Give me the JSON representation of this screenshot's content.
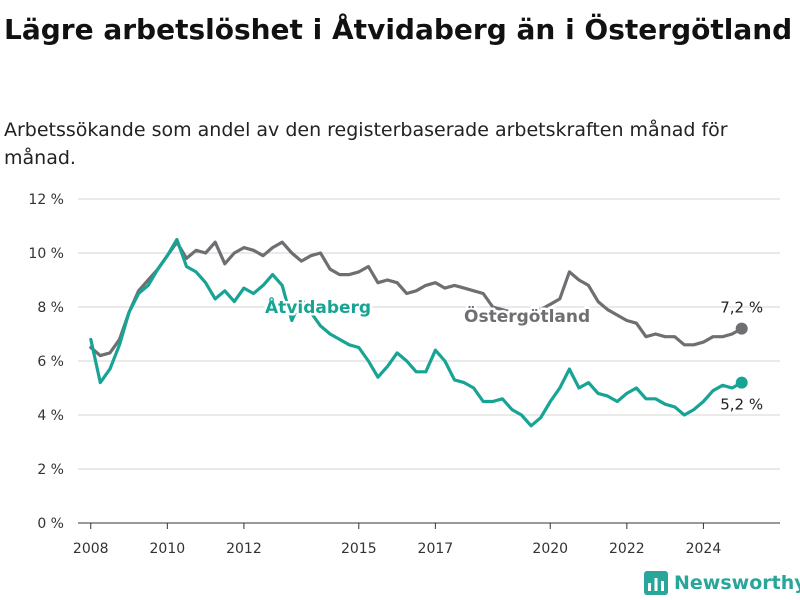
{
  "title": "Lägre arbetslöshet i Åtvidaberg än i Östergötland",
  "subtitle": "Arbetssökande som andel av den registerbaserade arbetskraften månad för månad.",
  "brand": {
    "name": "Newsworthy",
    "icon": "bar-chart-icon"
  },
  "colors": {
    "atvidaberg": "#17a495",
    "ostergotland": "#6f6e72",
    "grid": "#d5d5d5",
    "axis": "#333333"
  },
  "chart_data": {
    "type": "line",
    "title": "Lägre arbetslöshet i Åtvidaberg än i Östergötland",
    "subtitle": "Arbetssökande som andel av den registerbaserade arbetskraften månad för månad.",
    "xlabel": "",
    "ylabel": "",
    "ylim": [
      0,
      12
    ],
    "y_ticks": [
      0,
      2,
      4,
      6,
      8,
      10,
      12
    ],
    "y_tick_labels": [
      "0 %",
      "2 %",
      "4 %",
      "6 %",
      "8 %",
      "10 %",
      "12 %"
    ],
    "x_ticks": [
      "2008",
      "2010",
      "2012",
      "2015",
      "2017",
      "2020",
      "2022",
      "2024"
    ],
    "grid": true,
    "legend": "inline labels",
    "series": [
      {
        "name": "Östergötland",
        "end_label": "7,2 %",
        "x": [
          "2008-01",
          "2008-04",
          "2008-07",
          "2008-10",
          "2009-01",
          "2009-04",
          "2009-07",
          "2009-10",
          "2010-01",
          "2010-04",
          "2010-07",
          "2010-10",
          "2011-01",
          "2011-04",
          "2011-07",
          "2011-10",
          "2012-01",
          "2012-04",
          "2012-07",
          "2012-10",
          "2013-01",
          "2013-04",
          "2013-07",
          "2013-10",
          "2014-01",
          "2014-04",
          "2014-07",
          "2014-10",
          "2015-01",
          "2015-04",
          "2015-07",
          "2015-10",
          "2016-01",
          "2016-04",
          "2016-07",
          "2016-10",
          "2017-01",
          "2017-04",
          "2017-07",
          "2017-10",
          "2018-01",
          "2018-04",
          "2018-07",
          "2018-10",
          "2019-01",
          "2019-04",
          "2019-07",
          "2019-10",
          "2020-01",
          "2020-04",
          "2020-07",
          "2020-10",
          "2021-01",
          "2021-04",
          "2021-07",
          "2021-10",
          "2022-01",
          "2022-04",
          "2022-07",
          "2022-10",
          "2023-01",
          "2023-04",
          "2023-07",
          "2023-10",
          "2024-01",
          "2024-04",
          "2024-07",
          "2024-10",
          "2025-01"
        ],
        "values": [
          6.5,
          6.2,
          6.3,
          6.8,
          7.8,
          8.6,
          9.0,
          9.4,
          9.9,
          10.4,
          9.8,
          10.1,
          10.0,
          10.4,
          9.6,
          10.0,
          10.2,
          10.1,
          9.9,
          10.2,
          10.4,
          10.0,
          9.7,
          9.9,
          10.0,
          9.4,
          9.2,
          9.2,
          9.3,
          9.5,
          8.9,
          9.0,
          8.9,
          8.5,
          8.6,
          8.8,
          8.9,
          8.7,
          8.8,
          8.7,
          8.6,
          8.5,
          8.0,
          7.9,
          7.8,
          7.6,
          7.7,
          7.9,
          8.1,
          8.3,
          9.3,
          9.0,
          8.8,
          8.2,
          7.9,
          7.7,
          7.5,
          7.4,
          6.9,
          7.0,
          6.9,
          6.9,
          6.6,
          6.6,
          6.7,
          6.9,
          6.9,
          7.0,
          7.2
        ]
      },
      {
        "name": "Åtvidaberg",
        "end_label": "5,2 %",
        "x": [
          "2008-01",
          "2008-04",
          "2008-07",
          "2008-10",
          "2009-01",
          "2009-04",
          "2009-07",
          "2009-10",
          "2010-01",
          "2010-04",
          "2010-07",
          "2010-10",
          "2011-01",
          "2011-04",
          "2011-07",
          "2011-10",
          "2012-01",
          "2012-04",
          "2012-07",
          "2012-10",
          "2013-01",
          "2013-04",
          "2013-07",
          "2013-10",
          "2014-01",
          "2014-04",
          "2014-07",
          "2014-10",
          "2015-01",
          "2015-04",
          "2015-07",
          "2015-10",
          "2016-01",
          "2016-04",
          "2016-07",
          "2016-10",
          "2017-01",
          "2017-04",
          "2017-07",
          "2017-10",
          "2018-01",
          "2018-04",
          "2018-07",
          "2018-10",
          "2019-01",
          "2019-04",
          "2019-07",
          "2019-10",
          "2020-01",
          "2020-04",
          "2020-07",
          "2020-10",
          "2021-01",
          "2021-04",
          "2021-07",
          "2021-10",
          "2022-01",
          "2022-04",
          "2022-07",
          "2022-10",
          "2023-01",
          "2023-04",
          "2023-07",
          "2023-10",
          "2024-01",
          "2024-04",
          "2024-07",
          "2024-10",
          "2025-01"
        ],
        "values": [
          6.8,
          5.2,
          5.7,
          6.6,
          7.8,
          8.5,
          8.8,
          9.4,
          9.9,
          10.5,
          9.5,
          9.3,
          8.9,
          8.3,
          8.6,
          8.2,
          8.7,
          8.5,
          8.8,
          9.2,
          8.8,
          7.5,
          8.3,
          7.8,
          7.3,
          7.0,
          6.8,
          6.6,
          6.5,
          6.0,
          5.4,
          5.8,
          6.3,
          6.0,
          5.6,
          5.6,
          6.4,
          6.0,
          5.3,
          5.2,
          5.0,
          4.5,
          4.5,
          4.6,
          4.2,
          4.0,
          3.6,
          3.9,
          4.5,
          5.0,
          5.7,
          5.0,
          5.2,
          4.8,
          4.7,
          4.5,
          4.8,
          5.0,
          4.6,
          4.6,
          4.4,
          4.3,
          4.0,
          4.2,
          4.5,
          4.9,
          5.1,
          5.0,
          5.2
        ]
      }
    ]
  }
}
